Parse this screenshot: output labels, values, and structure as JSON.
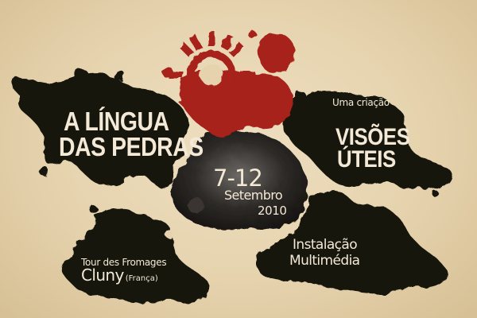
{
  "colors": {
    "paper": "#e6d3ae",
    "ink": "#17130f",
    "sun_red": "#a8201d",
    "cream_text": "#f3e9d6"
  },
  "icons": [
    "red-sun-stamp"
  ],
  "title": {
    "line1": "A LÍNGUA",
    "line2": "DAS PEDRAS"
  },
  "credit": {
    "intro": "Uma criação",
    "line1": "VISÕES",
    "line2": "ÚTEIS"
  },
  "dates": {
    "days": "7-12",
    "month": "Setembro",
    "year": "2010"
  },
  "tour": {
    "line1": "Tour des Fromages",
    "city": "Cluny",
    "country": "(França)"
  },
  "installation": {
    "line1": "Instalação",
    "line2": "Multimédia"
  }
}
